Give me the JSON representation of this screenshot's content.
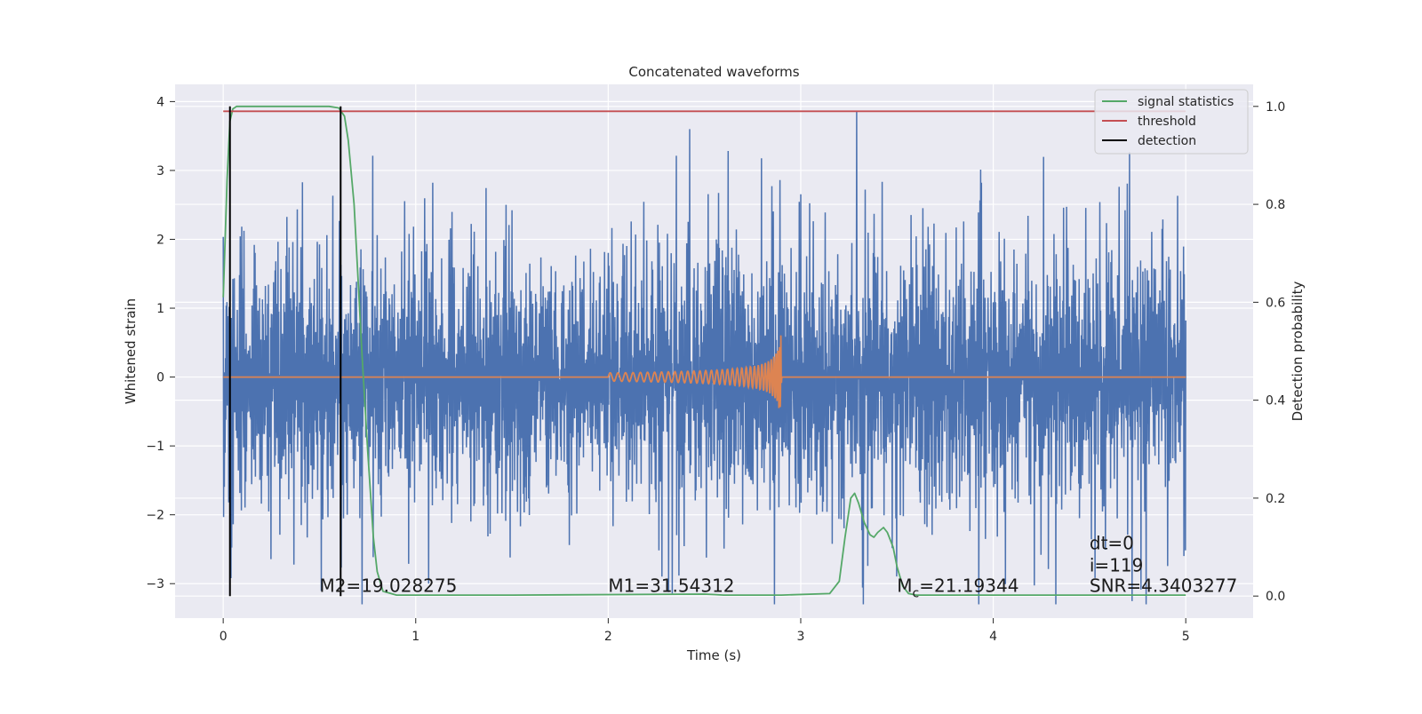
{
  "chart_data": {
    "type": "line",
    "title": "Concatenated waveforms",
    "xlabel": "Time (s)",
    "ylabel": "Whitened strain",
    "ylabel_right": "Detection probability",
    "xlim": [
      -0.25,
      5.35
    ],
    "ylim": [
      -3.5,
      4.25
    ],
    "ylim_right": [
      -0.045,
      1.045
    ],
    "x_ticks": [
      0,
      1,
      2,
      3,
      4,
      5
    ],
    "x_tick_labels": [
      "0",
      "1",
      "2",
      "3",
      "4",
      "5"
    ],
    "y_ticks": [
      -3,
      -2,
      -1,
      0,
      1,
      2,
      3,
      4
    ],
    "y_tick_labels": [
      "−3",
      "−2",
      "−1",
      "0",
      "1",
      "2",
      "3",
      "4"
    ],
    "y_right_ticks": [
      0.0,
      0.2,
      0.4,
      0.6,
      0.8,
      1.0
    ],
    "y_right_tick_labels": [
      "0.0",
      "0.2",
      "0.4",
      "0.6",
      "0.8",
      "1.0"
    ],
    "grid": true,
    "legend_position": "top-right",
    "legend": [
      {
        "label": "signal statistics",
        "color": "#55a868"
      },
      {
        "label": "threshold",
        "color": "#c44e52"
      },
      {
        "label": "detection",
        "color": "#000000"
      }
    ],
    "series": [
      {
        "key": "whitened_noise",
        "color": "#4c72b0",
        "x_range": [
          0,
          5
        ],
        "approx_amplitude": 2.3,
        "peak_value": 3.85,
        "peak_x": 3.29
      },
      {
        "key": "chirp",
        "color": "#dd8452",
        "x_range": [
          0,
          5
        ],
        "chirp_start": 2.0,
        "merger_time": 2.9,
        "peak_amplitude": 0.9
      },
      {
        "name": "signal statistics",
        "color": "#55a868",
        "axis": "right",
        "x": [
          0,
          0.02,
          0.035,
          0.05,
          0.07,
          0.1,
          0.2,
          0.4,
          0.55,
          0.6,
          0.63,
          0.65,
          0.68,
          0.7,
          0.72,
          0.75,
          0.78,
          0.8,
          0.83,
          0.9,
          1.5,
          2.5,
          2.55,
          2.6,
          2.9,
          3.15,
          3.2,
          3.23,
          3.26,
          3.28,
          3.3,
          3.33,
          3.36,
          3.38,
          3.4,
          3.43,
          3.45,
          3.48,
          3.5,
          3.53,
          3.56,
          3.6,
          4.0,
          5.0
        ],
        "y": [
          0.61,
          0.85,
          0.97,
          0.995,
          1.0,
          1.0,
          1.0,
          1.0,
          1.0,
          0.997,
          0.98,
          0.93,
          0.8,
          0.65,
          0.5,
          0.3,
          0.12,
          0.05,
          0.01,
          0.002,
          0.002,
          0.004,
          0.003,
          0.002,
          0.002,
          0.005,
          0.03,
          0.12,
          0.2,
          0.21,
          0.19,
          0.15,
          0.125,
          0.12,
          0.13,
          0.14,
          0.13,
          0.1,
          0.06,
          0.02,
          0.005,
          0.002,
          0.002,
          0.002
        ]
      },
      {
        "name": "threshold",
        "color": "#c44e52",
        "axis": "right",
        "x": [
          0,
          5
        ],
        "y": [
          0.99,
          0.99
        ]
      }
    ],
    "detections": [
      0.035,
      0.61
    ],
    "annotations": [
      {
        "text": "M2=19.028275",
        "x": 0.5,
        "y": -3.12
      },
      {
        "text": "M1=31.54312",
        "x": 2.0,
        "y": -3.12
      },
      {
        "main": "M",
        "sub": "c",
        "rest": "=21.19344",
        "x": 3.5,
        "y": -3.12
      },
      {
        "text": "dt=0",
        "x": 4.5,
        "y": -2.5
      },
      {
        "text": "i=119",
        "x": 4.5,
        "y": -2.82
      },
      {
        "text": "SNR=4.3403277",
        "x": 4.5,
        "y": -3.12
      }
    ]
  }
}
